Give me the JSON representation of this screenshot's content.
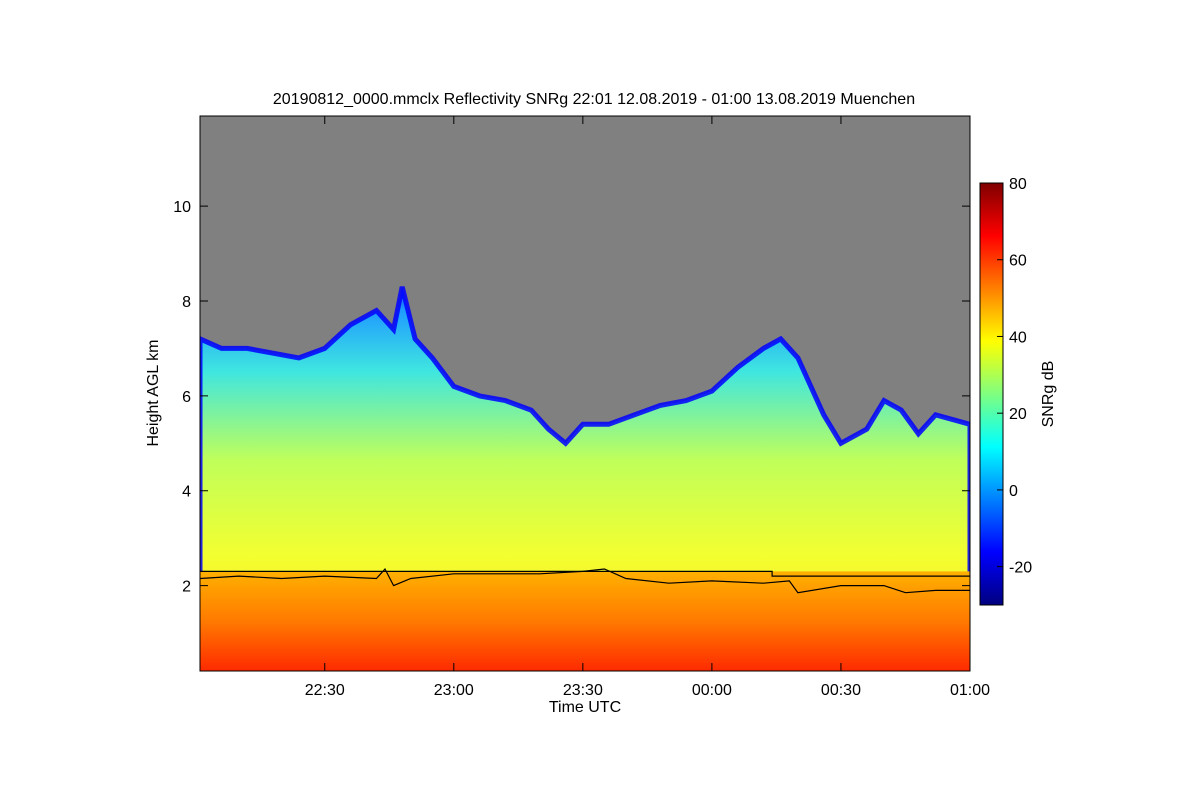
{
  "chart_data": {
    "type": "heatmap",
    "title": "20190812_0000.mmclx Reflectivity SNRg   22:01 12.08.2019 - 01:00 13.08.2019 Muenchen",
    "xlabel": "Time UTC",
    "ylabel": "Height AGL km",
    "xlim_minutes_since_2200": [
      1,
      180
    ],
    "x_ticks": [
      {
        "label": "22:30",
        "minutes": 30
      },
      {
        "label": "23:00",
        "minutes": 60
      },
      {
        "label": "23:30",
        "minutes": 90
      },
      {
        "label": "00:00",
        "minutes": 120
      },
      {
        "label": "00:30",
        "minutes": 150
      },
      {
        "label": "01:00",
        "minutes": 180
      }
    ],
    "ylim": [
      0.2,
      11.9
    ],
    "y_ticks": [
      2,
      4,
      6,
      8,
      10
    ],
    "colorbar": {
      "label": "SNRg dB",
      "range": [
        -30,
        80
      ],
      "ticks": [
        -20,
        0,
        20,
        40,
        60,
        80
      ],
      "colors": [
        "#00007f",
        "#0000ff",
        "#007fff",
        "#00ffff",
        "#7fff7f",
        "#ffff00",
        "#ff7f00",
        "#ff0000",
        "#7f0000"
      ]
    },
    "background_color": "#808080",
    "cloud_top_km": [
      {
        "t": 1,
        "h": 7.2
      },
      {
        "t": 6,
        "h": 7.0
      },
      {
        "t": 12,
        "h": 7.0
      },
      {
        "t": 18,
        "h": 6.9
      },
      {
        "t": 24,
        "h": 6.8
      },
      {
        "t": 30,
        "h": 7.0
      },
      {
        "t": 36,
        "h": 7.5
      },
      {
        "t": 42,
        "h": 7.8
      },
      {
        "t": 46,
        "h": 7.4
      },
      {
        "t": 48,
        "h": 8.3
      },
      {
        "t": 51,
        "h": 7.2
      },
      {
        "t": 55,
        "h": 6.8
      },
      {
        "t": 60,
        "h": 6.2
      },
      {
        "t": 66,
        "h": 6.0
      },
      {
        "t": 72,
        "h": 5.9
      },
      {
        "t": 78,
        "h": 5.7
      },
      {
        "t": 82,
        "h": 5.3
      },
      {
        "t": 86,
        "h": 5.0
      },
      {
        "t": 90,
        "h": 5.4
      },
      {
        "t": 96,
        "h": 5.4
      },
      {
        "t": 102,
        "h": 5.6
      },
      {
        "t": 108,
        "h": 5.8
      },
      {
        "t": 114,
        "h": 5.9
      },
      {
        "t": 120,
        "h": 6.1
      },
      {
        "t": 126,
        "h": 6.6
      },
      {
        "t": 132,
        "h": 7.0
      },
      {
        "t": 136,
        "h": 7.2
      },
      {
        "t": 140,
        "h": 6.8
      },
      {
        "t": 146,
        "h": 5.6
      },
      {
        "t": 150,
        "h": 5.0
      },
      {
        "t": 156,
        "h": 5.3
      },
      {
        "t": 160,
        "h": 5.9
      },
      {
        "t": 164,
        "h": 5.7
      },
      {
        "t": 168,
        "h": 5.2
      },
      {
        "t": 172,
        "h": 5.6
      },
      {
        "t": 180,
        "h": 5.4
      }
    ],
    "boundary_layer_km": [
      {
        "t": 1,
        "h": 2.15
      },
      {
        "t": 10,
        "h": 2.2
      },
      {
        "t": 20,
        "h": 2.15
      },
      {
        "t": 30,
        "h": 2.2
      },
      {
        "t": 42,
        "h": 2.15
      },
      {
        "t": 44,
        "h": 2.35
      },
      {
        "t": 46,
        "h": 2.0
      },
      {
        "t": 50,
        "h": 2.15
      },
      {
        "t": 60,
        "h": 2.25
      },
      {
        "t": 70,
        "h": 2.25
      },
      {
        "t": 80,
        "h": 2.25
      },
      {
        "t": 90,
        "h": 2.3
      },
      {
        "t": 95,
        "h": 2.35
      },
      {
        "t": 100,
        "h": 2.15
      },
      {
        "t": 110,
        "h": 2.05
      },
      {
        "t": 120,
        "h": 2.1
      },
      {
        "t": 132,
        "h": 2.05
      },
      {
        "t": 138,
        "h": 2.1
      },
      {
        "t": 140,
        "h": 1.85
      },
      {
        "t": 150,
        "h": 2.0
      },
      {
        "t": 160,
        "h": 2.0
      },
      {
        "t": 165,
        "h": 1.85
      },
      {
        "t": 172,
        "h": 1.9
      },
      {
        "t": 180,
        "h": 1.9
      }
    ],
    "melting_layer_km": [
      {
        "t": 1,
        "h": 2.3
      },
      {
        "t": 120,
        "h": 2.3
      },
      {
        "t": 134,
        "h": 2.3
      },
      {
        "t": 134,
        "h": 2.2
      },
      {
        "t": 180,
        "h": 2.2
      }
    ]
  }
}
